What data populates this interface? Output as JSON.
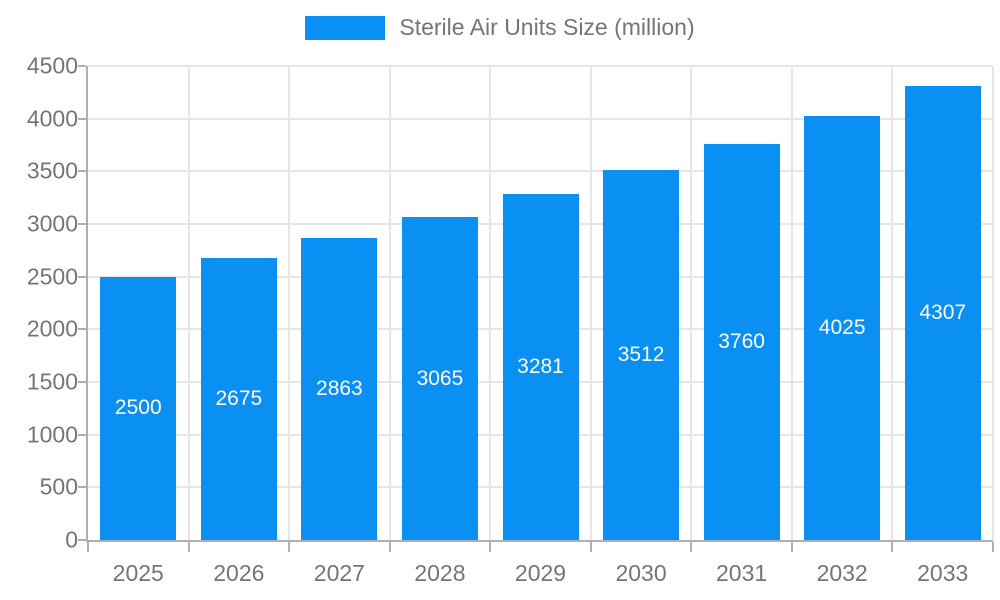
{
  "legend": {
    "label": "Sterile Air Units Size (million)"
  },
  "chart_data": {
    "type": "bar",
    "title": "Sterile Air Units Size (million)",
    "categories": [
      "2025",
      "2026",
      "2027",
      "2028",
      "2029",
      "2030",
      "2031",
      "2032",
      "2033"
    ],
    "values": [
      2500,
      2675,
      2863,
      3065,
      3281,
      3512,
      3760,
      4025,
      4307
    ],
    "series": [
      {
        "name": "Sterile Air Units Size (million)",
        "values": [
          2500,
          2675,
          2863,
          3065,
          3281,
          3512,
          3760,
          4025,
          4307
        ]
      }
    ],
    "xlabel": "",
    "ylabel": "",
    "ylim": [
      0,
      4500
    ],
    "ytick_step": 500,
    "yticks": [
      0,
      500,
      1000,
      1500,
      2000,
      2500,
      3000,
      3500,
      4000,
      4500
    ],
    "grid": true,
    "legend_position": "top-center",
    "bar_labels_shown": true,
    "colors": {
      "bar": "#0a8ff2",
      "bar_label": "#ffffff",
      "grid": "#e6e6e6",
      "axis": "#b0b0b0",
      "tick_label": "#757575",
      "background": "#ffffff"
    }
  }
}
